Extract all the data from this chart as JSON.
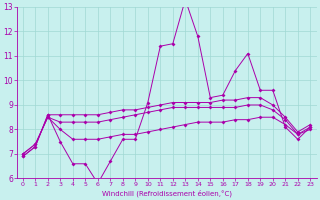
{
  "xlabel": "Windchill (Refroidissement éolien,°C)",
  "xlim": [
    -0.5,
    23.5
  ],
  "ylim": [
    6,
    13
  ],
  "yticks": [
    6,
    7,
    8,
    9,
    10,
    11,
    12,
    13
  ],
  "xticks": [
    0,
    1,
    2,
    3,
    4,
    5,
    6,
    7,
    8,
    9,
    10,
    11,
    12,
    13,
    14,
    15,
    16,
    17,
    18,
    19,
    20,
    21,
    22,
    23
  ],
  "background_color": "#c8f0ee",
  "grid_color": "#a0d8d4",
  "line_color": "#aa00aa",
  "line1": [
    6.9,
    7.3,
    8.6,
    7.5,
    6.6,
    6.6,
    5.8,
    6.7,
    7.6,
    7.6,
    9.1,
    11.4,
    11.5,
    13.3,
    11.8,
    9.3,
    9.4,
    10.4,
    11.1,
    9.6,
    9.6,
    8.1,
    7.6,
    8.1
  ],
  "line2": [
    7.0,
    7.4,
    8.5,
    8.0,
    7.6,
    7.6,
    7.6,
    7.7,
    7.8,
    7.8,
    7.9,
    8.0,
    8.1,
    8.2,
    8.3,
    8.3,
    8.3,
    8.4,
    8.4,
    8.5,
    8.5,
    8.2,
    7.8,
    8.0
  ],
  "line3": [
    7.0,
    7.4,
    8.5,
    8.3,
    8.3,
    8.3,
    8.3,
    8.4,
    8.5,
    8.6,
    8.7,
    8.8,
    8.9,
    8.9,
    8.9,
    8.9,
    8.9,
    8.9,
    9.0,
    9.0,
    8.8,
    8.4,
    7.8,
    8.1
  ],
  "line4": [
    6.9,
    7.3,
    8.6,
    8.6,
    8.6,
    8.6,
    8.6,
    8.7,
    8.8,
    8.8,
    8.9,
    9.0,
    9.1,
    9.1,
    9.1,
    9.1,
    9.2,
    9.2,
    9.3,
    9.3,
    9.0,
    8.5,
    7.9,
    8.2
  ]
}
